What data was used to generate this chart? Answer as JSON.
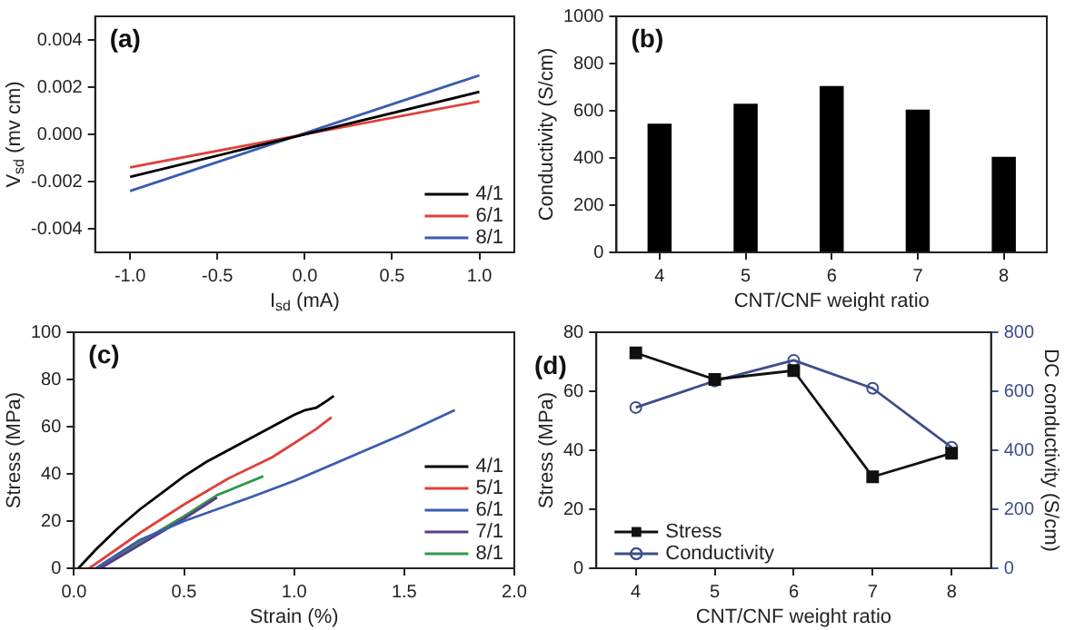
{
  "chart_data": [
    {
      "type": "line",
      "annotations": [
        "(a)"
      ],
      "xlabel": "I$_{sd}$ (mA)",
      "ylabel": "V$_{sd}$ (mv cm)",
      "x": [
        -1,
        1
      ],
      "series": [
        {
          "name": "4/1",
          "color": "#000000",
          "values": [
            -0.0018,
            0.0018
          ]
        },
        {
          "name": "6/1",
          "color": "#e0403a",
          "values": [
            -0.0014,
            0.0014
          ]
        },
        {
          "name": "8/1",
          "color": "#3a5bb0",
          "values": [
            -0.0024,
            0.0025
          ]
        }
      ],
      "xlim": [
        -1.2,
        1.2
      ],
      "xticks": [
        {
          "value": -1,
          "label": "-1.0"
        },
        -0.5,
        {
          "value": 0,
          "label": "0.0"
        },
        0.5,
        {
          "value": 1,
          "label": "1.0"
        }
      ],
      "ylim": [
        -0.005,
        0.005
      ],
      "yticks": [
        -0.004,
        -0.002,
        {
          "value": 0,
          "label": "0.000"
        },
        0.002,
        0.004
      ],
      "legend": "bottom right",
      "marker": "none",
      "grid": false
    },
    {
      "type": "bar",
      "annotations": [
        "(b)"
      ],
      "xlabel": "CNT/CNF weight ratio",
      "ylabel": "Conductivity (S/cm)",
      "categories": [
        "4",
        "5",
        "6",
        "7",
        "8"
      ],
      "values": [
        545,
        630,
        705,
        605,
        405
      ],
      "color": "#000000",
      "ylim": [
        0,
        1000
      ],
      "yticks": [
        0,
        200,
        400,
        600,
        800,
        1000
      ],
      "legend": false,
      "grid": false
    },
    {
      "type": "line",
      "annotations": [
        "(c)"
      ],
      "xlabel": "Strain (%)",
      "ylabel": "Stress (MPa)",
      "series": [
        {
          "name": "4/1",
          "color": "#000000",
          "x": [
            0.02,
            0.1,
            0.2,
            0.3,
            0.4,
            0.5,
            0.6,
            0.7,
            0.8,
            0.9,
            1.0,
            1.05,
            1.1,
            1.15,
            1.18
          ],
          "values": [
            0,
            8,
            17,
            25,
            32,
            39,
            45,
            50,
            55,
            60,
            65,
            67,
            68,
            71,
            73
          ]
        },
        {
          "name": "5/1",
          "color": "#e0403a",
          "x": [
            0.07,
            0.3,
            0.5,
            0.7,
            0.9,
            1.0,
            1.1,
            1.17
          ],
          "values": [
            0,
            15,
            27,
            38,
            47,
            53,
            59,
            64
          ]
        },
        {
          "name": "6/1",
          "color": "#3a5bb0",
          "x": [
            0.1,
            0.3,
            0.5,
            0.8,
            1.0,
            1.25,
            1.5,
            1.73
          ],
          "values": [
            0,
            12,
            20,
            30,
            37,
            47,
            57,
            67
          ]
        },
        {
          "name": "7/1",
          "color": "#5a3a8a",
          "x": [
            0.12,
            0.3,
            0.5,
            0.65
          ],
          "values": [
            0,
            10,
            21,
            30
          ]
        },
        {
          "name": "8/1",
          "color": "#2e9a4a",
          "x": [
            0.12,
            0.3,
            0.5,
            0.65,
            0.86
          ],
          "values": [
            0,
            11,
            22,
            31,
            39
          ]
        }
      ],
      "xlim": [
        0,
        2
      ],
      "xticks": [
        {
          "value": 0,
          "label": "0.0"
        },
        0.5,
        {
          "value": 1,
          "label": "1.0"
        },
        1.5,
        {
          "value": 2,
          "label": "2.0"
        }
      ],
      "ylim": [
        0,
        100
      ],
      "yticks": [
        0,
        20,
        40,
        60,
        80,
        100
      ],
      "legend": "bottom right",
      "marker": "none",
      "grid": false
    },
    {
      "type": "line",
      "annotations": [
        "(d)"
      ],
      "xlabel": "CNT/CNF weight ratio",
      "ylabel": "Stress (MPa)",
      "y2label": "DC conductivity (S/cm)",
      "categories": [
        "4",
        "5",
        "6",
        "7",
        "8"
      ],
      "series": [
        {
          "name": "Stress",
          "color": "#111111",
          "marker": "square",
          "values": [
            73,
            64,
            67,
            31,
            39
          ]
        },
        {
          "name": "Conductivity",
          "color": "#3d4d8c",
          "marker": "circle",
          "axis": "y2",
          "values": [
            545,
            635,
            705,
            610,
            410
          ]
        }
      ],
      "ylim": [
        0,
        80
      ],
      "yticks": [
        0,
        20,
        40,
        60,
        80
      ],
      "y2lim": [
        0,
        800
      ],
      "y2ticks": [
        0,
        200,
        400,
        600,
        800
      ],
      "legend": "bottom left",
      "grid": false
    }
  ]
}
